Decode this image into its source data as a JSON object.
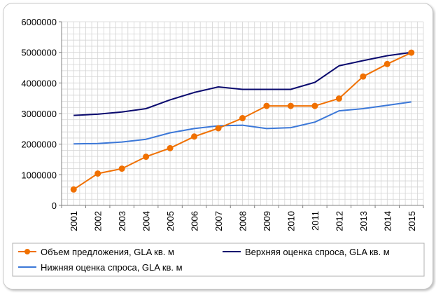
{
  "chart_data": {
    "type": "line",
    "title": "",
    "xlabel": "",
    "ylabel": "",
    "x": [
      "2001",
      "2002",
      "2003",
      "2004",
      "2005",
      "2006",
      "2007",
      "2008",
      "2009",
      "2010",
      "2011",
      "2012",
      "2013",
      "2014",
      "2015"
    ],
    "ylim": [
      0,
      6000000
    ],
    "yticks": [
      0,
      1000000,
      2000000,
      3000000,
      4000000,
      5000000,
      6000000
    ],
    "ytick_labels": [
      "0",
      "1000000",
      "2000000",
      "3000000",
      "4000000",
      "5000000",
      "6000000"
    ],
    "grid": true,
    "legend_position": "bottom",
    "series": [
      {
        "name": "Объем предложения, GLA кв. м",
        "color": "#f07000",
        "marker": "circle",
        "values": [
          520000,
          1040000,
          1200000,
          1590000,
          1870000,
          2250000,
          2520000,
          2850000,
          3250000,
          3250000,
          3250000,
          3490000,
          4210000,
          4620000,
          4990000
        ]
      },
      {
        "name": "Верхняя оценка спроса, GLA кв. м",
        "color": "#0a0a6e",
        "marker": "none",
        "values": [
          2940000,
          2980000,
          3050000,
          3160000,
          3450000,
          3690000,
          3870000,
          3790000,
          3790000,
          3790000,
          4020000,
          4560000,
          4730000,
          4890000,
          5000000
        ]
      },
      {
        "name": "Нижняя оценка спроса, GLA кв. м",
        "color": "#3c78d8",
        "marker": "none",
        "values": [
          2010000,
          2020000,
          2070000,
          2160000,
          2370000,
          2510000,
          2600000,
          2620000,
          2510000,
          2540000,
          2720000,
          3090000,
          3160000,
          3270000,
          3380000
        ]
      }
    ]
  }
}
